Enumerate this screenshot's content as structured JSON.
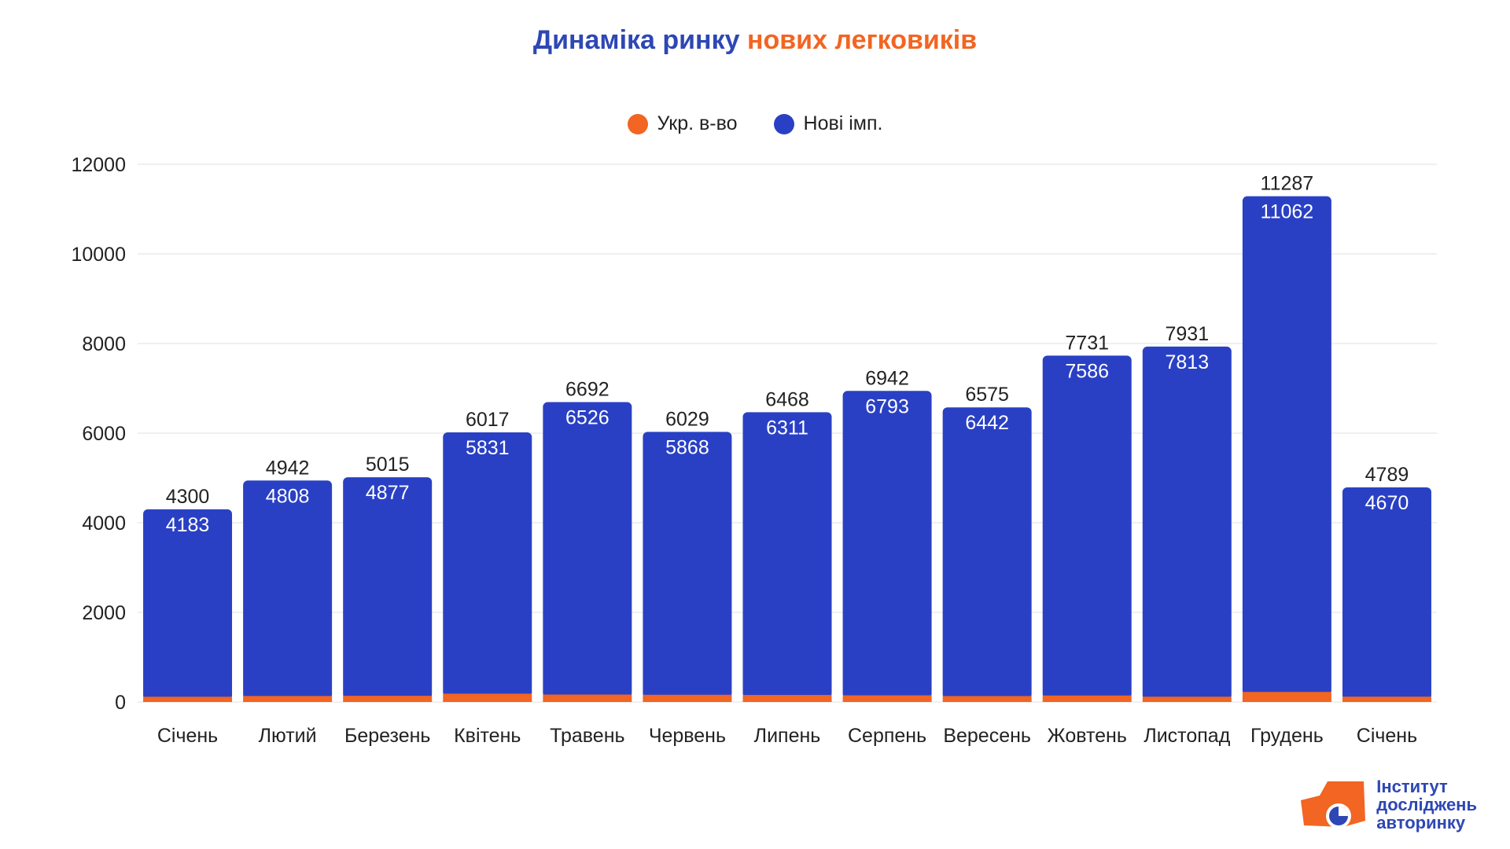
{
  "title": {
    "part1": "Динаміка ринку",
    "part2": "нових легковиків"
  },
  "legend": [
    {
      "label": "Укр. в-во",
      "color": "#f26522"
    },
    {
      "label": "Нові імп.",
      "color": "#2a40c4"
    }
  ],
  "logo": {
    "line1": "Інститут",
    "line2": "досліджень",
    "line3": "авторинку"
  },
  "colors": {
    "import": "#2a40c4",
    "domestic": "#f26522",
    "grid": "#e0e0e0",
    "title_blue": "#2e47b4",
    "title_orange": "#f26522"
  },
  "chart_data": {
    "type": "bar",
    "stacked": true,
    "title": "Динаміка ринку нових легковиків",
    "categories": [
      "Січень",
      "Лютий",
      "Березень",
      "Квітень",
      "Травень",
      "Червень",
      "Липень",
      "Серпень",
      "Вересень",
      "Жовтень",
      "Листопад",
      "Грудень",
      "Січень"
    ],
    "series": [
      {
        "name": "Укр. в-во",
        "values": [
          117,
          134,
          138,
          186,
          166,
          161,
          157,
          149,
          133,
          145,
          118,
          225,
          119
        ]
      },
      {
        "name": "Нові імп.",
        "values": [
          4183,
          4808,
          4877,
          5831,
          6526,
          5868,
          6311,
          6793,
          6442,
          7586,
          7813,
          11062,
          4670
        ]
      }
    ],
    "totals": [
      4300,
      4942,
      5015,
      6017,
      6692,
      6029,
      6468,
      6942,
      6575,
      7731,
      7931,
      11287,
      4789
    ],
    "yticks": [
      0,
      2000,
      4000,
      6000,
      8000,
      10000,
      12000
    ],
    "ylim": [
      0,
      12000
    ],
    "grid": true,
    "legend_position": "top-center"
  }
}
